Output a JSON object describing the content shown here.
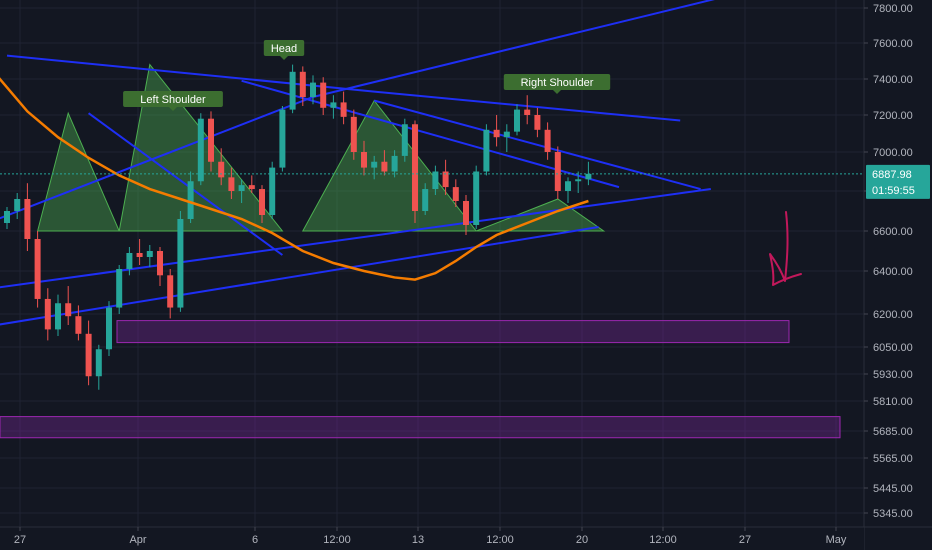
{
  "chart_data": {
    "type": "candlestick",
    "symbol_hint": "BTC/USD",
    "y_ticks": [
      7800,
      7600,
      7400,
      7200,
      7000,
      6800,
      6600,
      6400,
      6200,
      6050,
      5930,
      5810,
      5685,
      5565,
      5445,
      5345
    ],
    "y_tick_labels": [
      "7800.00",
      "7600.00",
      "7400.00",
      "7200.00",
      "7000.00",
      "6800.00",
      "6600.00",
      "6400.00",
      "6200.00",
      "6050.00",
      "5930.00",
      "5810.00",
      "5685.00",
      "5565.00",
      "5445.00",
      "5345.00"
    ],
    "x_tick_labels": [
      "27",
      "Apr",
      "6",
      "12:00",
      "13",
      "12:00",
      "20",
      "12:00",
      "27",
      "May"
    ],
    "last_price": "6887.98",
    "countdown": "01:59:55",
    "annotations": [
      "Left Shoulder",
      "Head",
      "Right Shoulder"
    ],
    "candles": [
      [
        6640,
        6720,
        6610,
        6700
      ],
      [
        6700,
        6790,
        6660,
        6760
      ],
      [
        6760,
        6840,
        6500,
        6560
      ],
      [
        6560,
        6600,
        6230,
        6270
      ],
      [
        6270,
        6320,
        6080,
        6130
      ],
      [
        6130,
        6290,
        6100,
        6250
      ],
      [
        6250,
        6330,
        6150,
        6190
      ],
      [
        6190,
        6240,
        6080,
        6110
      ],
      [
        6110,
        6170,
        5880,
        5920
      ],
      [
        5920,
        6060,
        5860,
        6040
      ],
      [
        6040,
        6260,
        6010,
        6230
      ],
      [
        6230,
        6430,
        6200,
        6410
      ],
      [
        6410,
        6520,
        6380,
        6490
      ],
      [
        6490,
        6560,
        6430,
        6470
      ],
      [
        6470,
        6530,
        6420,
        6500
      ],
      [
        6500,
        6520,
        6330,
        6380
      ],
      [
        6380,
        6410,
        6180,
        6230
      ],
      [
        6230,
        6700,
        6210,
        6660
      ],
      [
        6660,
        6900,
        6640,
        6850
      ],
      [
        6850,
        7210,
        6830,
        7180
      ],
      [
        7180,
        7220,
        6900,
        6950
      ],
      [
        6950,
        7020,
        6830,
        6870
      ],
      [
        6870,
        6920,
        6760,
        6800
      ],
      [
        6800,
        6860,
        6740,
        6830
      ],
      [
        6830,
        6880,
        6790,
        6810
      ],
      [
        6810,
        6830,
        6640,
        6680
      ],
      [
        6680,
        6950,
        6660,
        6920
      ],
      [
        6920,
        7250,
        6900,
        7230
      ],
      [
        7230,
        7480,
        7210,
        7440
      ],
      [
        7440,
        7470,
        7250,
        7300
      ],
      [
        7300,
        7420,
        7260,
        7380
      ],
      [
        7380,
        7410,
        7200,
        7240
      ],
      [
        7240,
        7310,
        7180,
        7270
      ],
      [
        7270,
        7330,
        7150,
        7190
      ],
      [
        7190,
        7230,
        6960,
        7000
      ],
      [
        7000,
        7060,
        6880,
        6920
      ],
      [
        6920,
        6980,
        6860,
        6950
      ],
      [
        6950,
        7010,
        6880,
        6900
      ],
      [
        6900,
        7010,
        6870,
        6980
      ],
      [
        6980,
        7180,
        6950,
        7150
      ],
      [
        7150,
        7170,
        6640,
        6700
      ],
      [
        6700,
        6840,
        6680,
        6810
      ],
      [
        6810,
        6930,
        6780,
        6900
      ],
      [
        6900,
        6960,
        6780,
        6820
      ],
      [
        6820,
        6860,
        6720,
        6750
      ],
      [
        6750,
        6780,
        6580,
        6630
      ],
      [
        6630,
        6930,
        6610,
        6900
      ],
      [
        6900,
        7150,
        6880,
        7120
      ],
      [
        7120,
        7200,
        7030,
        7080
      ],
      [
        7080,
        7150,
        7000,
        7110
      ],
      [
        7110,
        7260,
        7090,
        7230
      ],
      [
        7230,
        7310,
        7150,
        7200
      ],
      [
        7200,
        7240,
        7080,
        7120
      ],
      [
        7120,
        7160,
        6960,
        7000
      ],
      [
        7000,
        7030,
        6760,
        6800
      ],
      [
        6800,
        6870,
        6740,
        6850
      ],
      [
        6850,
        6900,
        6790,
        6860
      ],
      [
        6860,
        6950,
        6830,
        6888
      ]
    ],
    "moving_average": [
      [
        -4,
        7580
      ],
      [
        -1,
        7420
      ],
      [
        2,
        7220
      ],
      [
        5,
        7080
      ],
      [
        8,
        6970
      ],
      [
        11,
        6880
      ],
      [
        14,
        6810
      ],
      [
        17,
        6760
      ],
      [
        20,
        6710
      ],
      [
        23,
        6660
      ],
      [
        26,
        6590
      ],
      [
        29,
        6500
      ],
      [
        32,
        6440
      ],
      [
        35,
        6400
      ],
      [
        38,
        6370
      ],
      [
        40,
        6360
      ],
      [
        42,
        6390
      ],
      [
        44,
        6450
      ],
      [
        46,
        6520
      ],
      [
        48,
        6580
      ],
      [
        51,
        6640
      ],
      [
        54,
        6700
      ],
      [
        57,
        6750
      ]
    ],
    "pattern_triangles": [
      {
        "name": "Left Shoulder",
        "points": [
          [
            3,
            6600
          ],
          [
            6,
            7210
          ],
          [
            11,
            6600
          ]
        ]
      },
      {
        "name": "Head",
        "points": [
          [
            11,
            6600
          ],
          [
            14,
            7480
          ],
          [
            27,
            6600
          ]
        ]
      },
      {
        "name": "Right Shoulder",
        "points": [
          [
            29,
            6600
          ],
          [
            36,
            7280
          ],
          [
            46,
            6600
          ]
        ]
      }
    ],
    "trend_lines": [
      [
        [
          -9,
          6270
        ],
        [
          69,
          6810
        ]
      ],
      [
        [
          -5,
          6120
        ],
        [
          58,
          6620
        ]
      ],
      [
        [
          -9,
          6500
        ],
        [
          30,
          7300
        ],
        [
          70,
          7860
        ]
      ],
      [
        [
          0,
          7530
        ],
        [
          36,
          7330
        ],
        [
          66,
          7170
        ]
      ],
      [
        [
          8,
          7210
        ],
        [
          27,
          6480
        ]
      ],
      [
        [
          23,
          7390
        ],
        [
          60,
          6820
        ]
      ],
      [
        [
          36,
          7280
        ],
        [
          68,
          6810
        ]
      ]
    ],
    "support_zones": [
      [
        6170,
        6070
      ],
      [
        5745,
        5655
      ]
    ],
    "price_line": 6888
  }
}
